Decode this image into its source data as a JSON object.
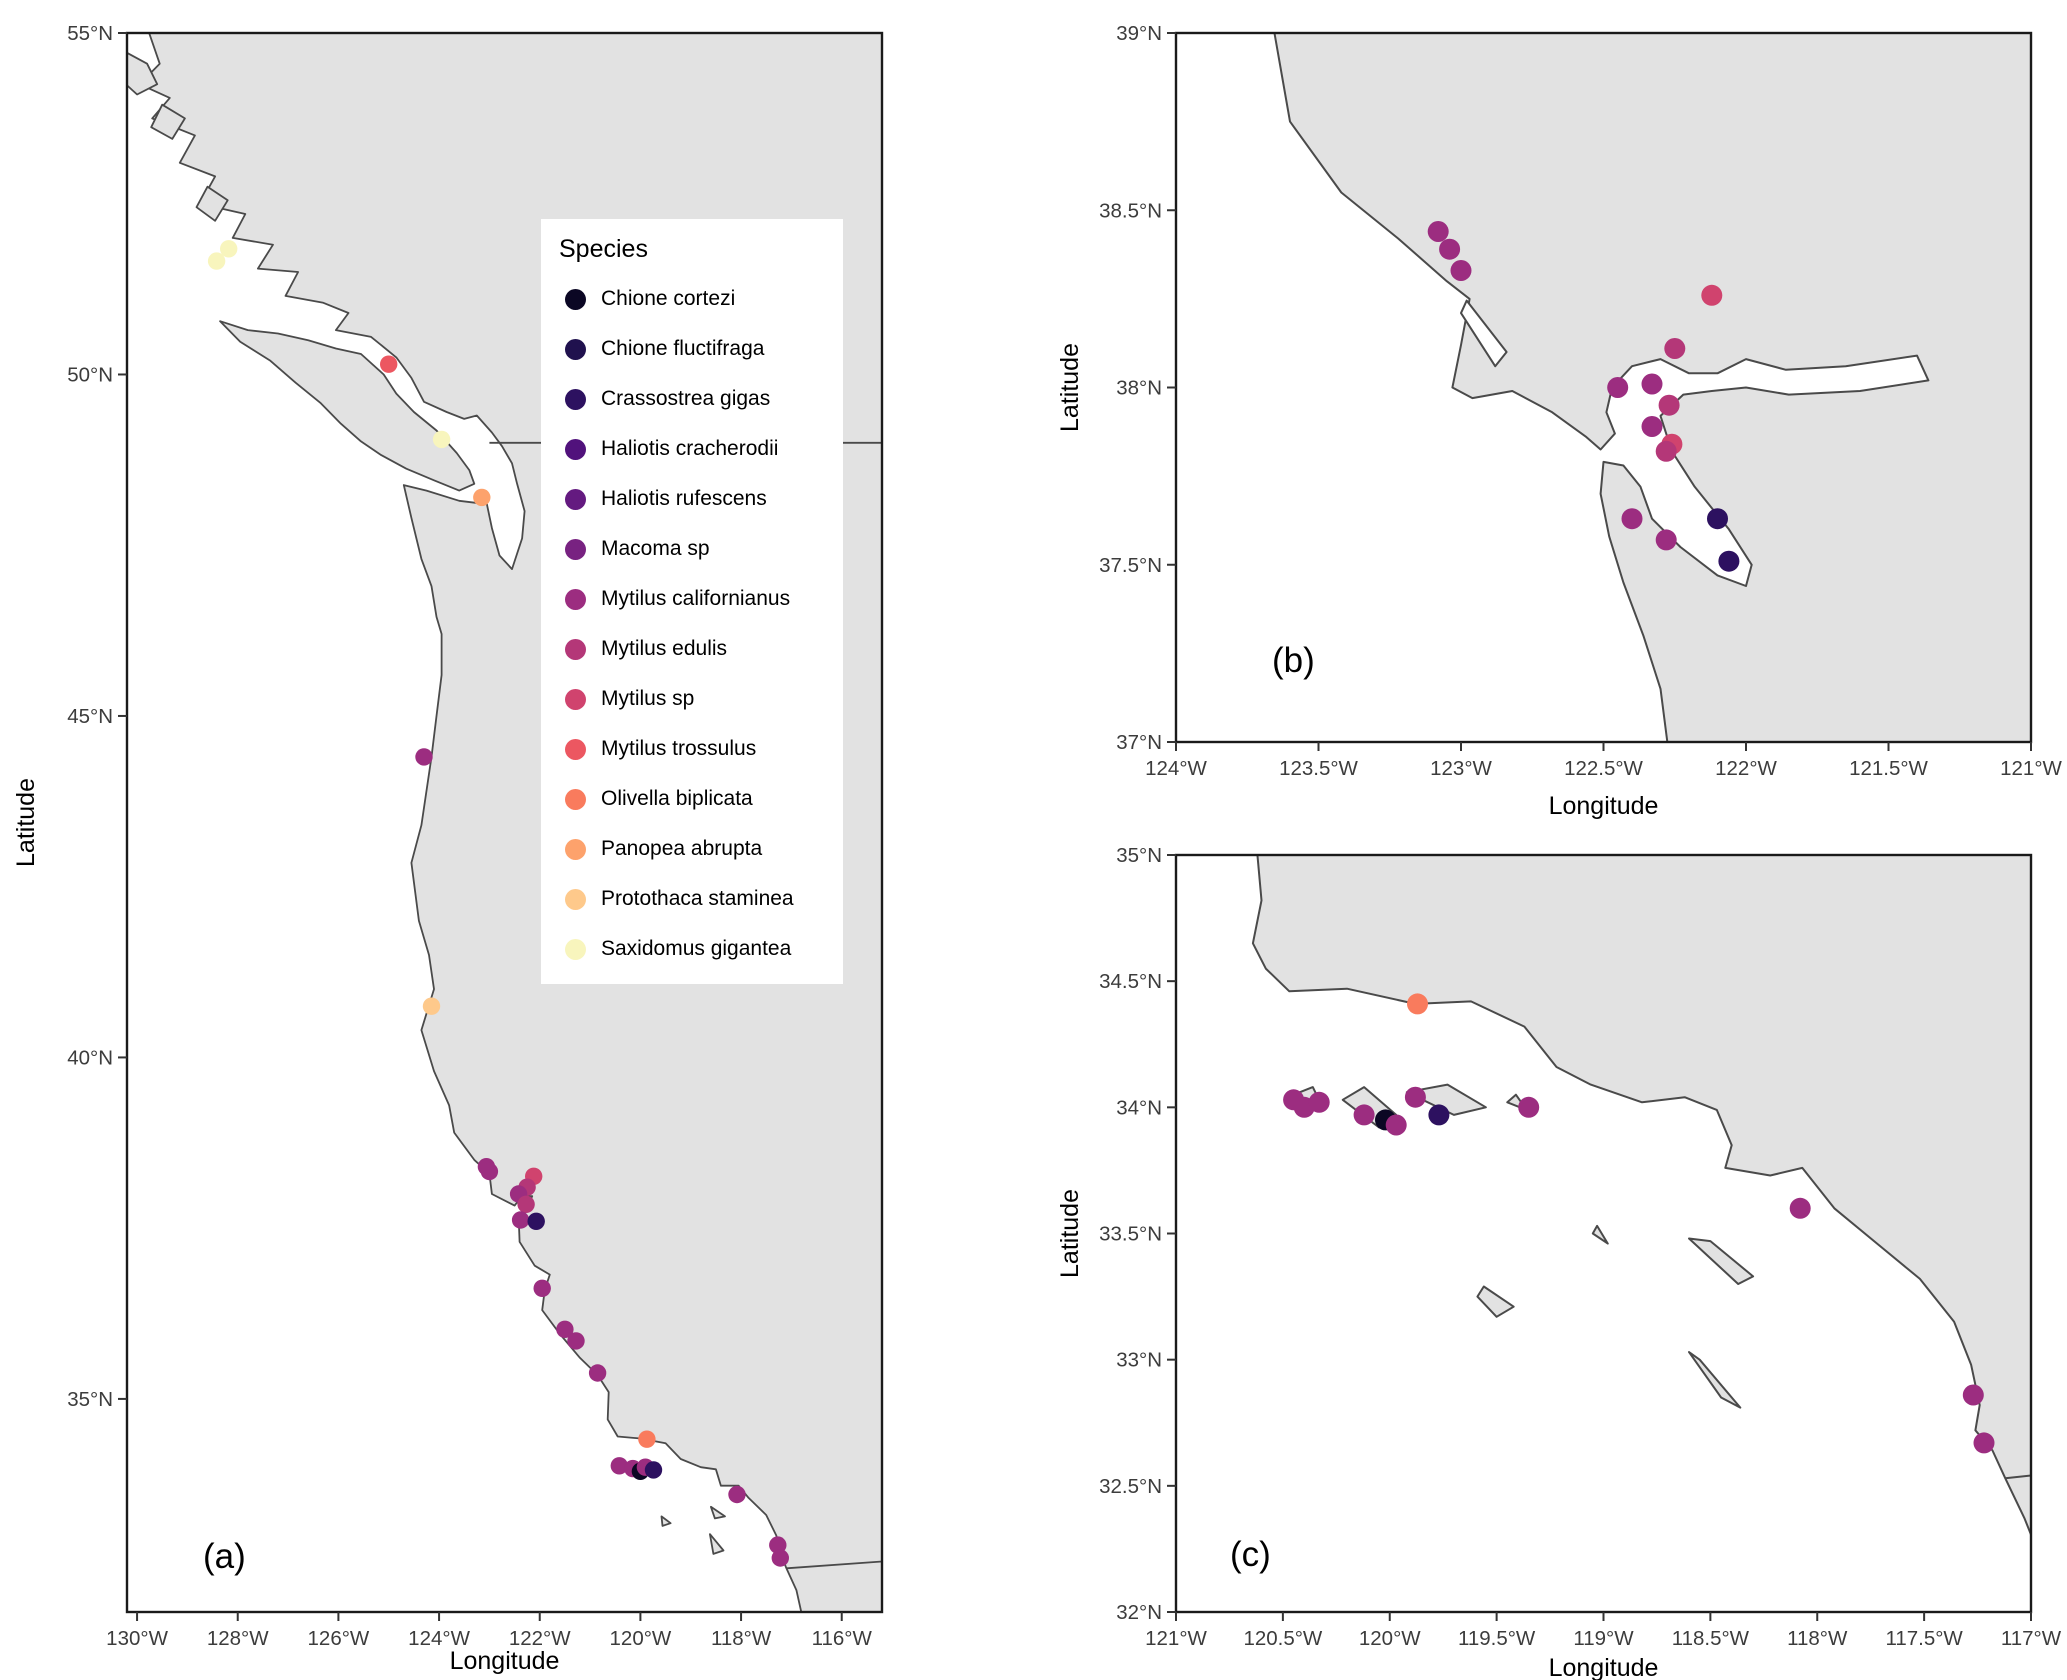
{
  "chart_data": {
    "type": "scatter",
    "title": "",
    "style": {
      "ocean_color": "#ffffff",
      "land_color": "#e2e2e2",
      "coast_color": "#4a4a4a",
      "panel_border_color": "#1a1a1a",
      "tick_color": "#333333",
      "tick_label_color": "#3c3c3c",
      "axis_title_color": "#000000"
    },
    "legend": {
      "title": "Species",
      "position": "inside-panel-a",
      "items": [
        {
          "label": "Chione cortezi",
          "color": "#0b0724"
        },
        {
          "label": "Chione fluctifraga",
          "color": "#20114e"
        },
        {
          "label": "Crassostrea gigas",
          "color": "#2d1160"
        },
        {
          "label": "Haliotis cracherodii",
          "color": "#51127c"
        },
        {
          "label": "Haliotis rufescens",
          "color": "#641a80"
        },
        {
          "label": "Macoma sp",
          "color": "#782281"
        },
        {
          "label": "Mytilus californianus",
          "color": "#9c2d80"
        },
        {
          "label": "Mytilus edulis",
          "color": "#b43778"
        },
        {
          "label": "Mytilus sp",
          "color": "#d0436e"
        },
        {
          "label": "Mytilus trossulus",
          "color": "#ec5761"
        },
        {
          "label": "Olivella biplicata",
          "color": "#f97b5d"
        },
        {
          "label": "Panopea abrupta",
          "color": "#fda26c"
        },
        {
          "label": "Protothaca staminea",
          "color": "#fec98b"
        },
        {
          "label": "Saxidomus gigantea",
          "color": "#f8f5bd"
        }
      ]
    },
    "panels": [
      {
        "id": "a",
        "label": "(a)",
        "xlabel": "Longitude",
        "ylabel": "Latitude",
        "xlim": [
          -130.2,
          -115.2
        ],
        "ylim": [
          31.88,
          55.0
        ],
        "x_ticks": [
          {
            "v": -130,
            "label": "130°W"
          },
          {
            "v": -128,
            "label": "128°W"
          },
          {
            "v": -126,
            "label": "126°W"
          },
          {
            "v": -124,
            "label": "124°W"
          },
          {
            "v": -122,
            "label": "122°W"
          },
          {
            "v": -120,
            "label": "120°W"
          },
          {
            "v": -118,
            "label": "118°W"
          },
          {
            "v": -116,
            "label": "116°W"
          }
        ],
        "y_ticks": [
          {
            "v": 35,
            "label": "35°N"
          },
          {
            "v": 40,
            "label": "40°N"
          },
          {
            "v": 45,
            "label": "45°N"
          },
          {
            "v": 50,
            "label": "50°N"
          },
          {
            "v": 55,
            "label": "55°N"
          }
        ],
        "points": [
          {
            "species": "Saxidomus gigantea",
            "lon": -128.42,
            "lat": 51.66
          },
          {
            "species": "Saxidomus gigantea",
            "lon": -128.18,
            "lat": 51.84
          },
          {
            "species": "Mytilus trossulus",
            "lon": -125.0,
            "lat": 50.15
          },
          {
            "species": "Saxidomus gigantea",
            "lon": -123.95,
            "lat": 49.05
          },
          {
            "species": "Panopea abrupta",
            "lon": -123.15,
            "lat": 48.2
          },
          {
            "species": "Mytilus californianus",
            "lon": -124.3,
            "lat": 44.4
          },
          {
            "species": "Protothaca staminea",
            "lon": -124.15,
            "lat": 40.75
          },
          {
            "species": "Mytilus californianus",
            "lon": -123.06,
            "lat": 38.4
          },
          {
            "species": "Mytilus californianus",
            "lon": -123.0,
            "lat": 38.33
          },
          {
            "species": "Mytilus sp",
            "lon": -122.12,
            "lat": 38.26
          },
          {
            "species": "Mytilus edulis",
            "lon": -122.25,
            "lat": 38.1
          },
          {
            "species": "Mytilus californianus",
            "lon": -122.42,
            "lat": 38.0
          },
          {
            "species": "Mytilus edulis",
            "lon": -122.27,
            "lat": 37.85
          },
          {
            "species": "Mytilus californianus",
            "lon": -122.38,
            "lat": 37.62
          },
          {
            "species": "Crassostrea gigas",
            "lon": -122.07,
            "lat": 37.6
          },
          {
            "species": "Mytilus californianus",
            "lon": -121.95,
            "lat": 36.62
          },
          {
            "species": "Mytilus californianus",
            "lon": -121.5,
            "lat": 36.02
          },
          {
            "species": "Mytilus californianus",
            "lon": -121.28,
            "lat": 35.85
          },
          {
            "species": "Mytilus californianus",
            "lon": -120.85,
            "lat": 35.38
          },
          {
            "species": "Olivella biplicata",
            "lon": -119.87,
            "lat": 34.41
          },
          {
            "species": "Mytilus californianus",
            "lon": -120.42,
            "lat": 34.02
          },
          {
            "species": "Mytilus californianus",
            "lon": -120.15,
            "lat": 33.98
          },
          {
            "species": "Chione cortezi",
            "lon": -120.0,
            "lat": 33.94
          },
          {
            "species": "Mytilus californianus",
            "lon": -119.9,
            "lat": 34.0
          },
          {
            "species": "Crassostrea gigas",
            "lon": -119.74,
            "lat": 33.96
          },
          {
            "species": "Mytilus californianus",
            "lon": -118.08,
            "lat": 33.6
          },
          {
            "species": "Mytilus californianus",
            "lon": -117.27,
            "lat": 32.86
          },
          {
            "species": "Mytilus californianus",
            "lon": -117.22,
            "lat": 32.67
          }
        ]
      },
      {
        "id": "b",
        "label": "(b)",
        "xlabel": "Longitude",
        "ylabel": "Latitude",
        "xlim": [
          -124.0,
          -121.0
        ],
        "ylim": [
          37.0,
          39.0
        ],
        "x_ticks": [
          {
            "v": -124,
            "label": "124°W"
          },
          {
            "v": -123.5,
            "label": "123.5°W"
          },
          {
            "v": -123,
            "label": "123°W"
          },
          {
            "v": -122.5,
            "label": "122.5°W"
          },
          {
            "v": -122,
            "label": "122°W"
          },
          {
            "v": -121.5,
            "label": "121.5°W"
          },
          {
            "v": -121,
            "label": "121°W"
          }
        ],
        "y_ticks": [
          {
            "v": 37,
            "label": "37°N"
          },
          {
            "v": 37.5,
            "label": "37.5°N"
          },
          {
            "v": 38,
            "label": "38°N"
          },
          {
            "v": 38.5,
            "label": "38.5°N"
          },
          {
            "v": 39,
            "label": "39°N"
          }
        ],
        "points": [
          {
            "species": "Mytilus californianus",
            "lon": -123.08,
            "lat": 38.44
          },
          {
            "species": "Mytilus californianus",
            "lon": -123.04,
            "lat": 38.39
          },
          {
            "species": "Mytilus californianus",
            "lon": -123.0,
            "lat": 38.33
          },
          {
            "species": "Mytilus sp",
            "lon": -122.12,
            "lat": 38.26
          },
          {
            "species": "Mytilus edulis",
            "lon": -122.25,
            "lat": 38.11
          },
          {
            "species": "Mytilus californianus",
            "lon": -122.45,
            "lat": 38.0
          },
          {
            "species": "Mytilus californianus",
            "lon": -122.33,
            "lat": 38.01
          },
          {
            "species": "Mytilus edulis",
            "lon": -122.27,
            "lat": 37.95
          },
          {
            "species": "Mytilus californianus",
            "lon": -122.33,
            "lat": 37.89
          },
          {
            "species": "Mytilus sp",
            "lon": -122.26,
            "lat": 37.84
          },
          {
            "species": "Mytilus edulis",
            "lon": -122.28,
            "lat": 37.82
          },
          {
            "species": "Mytilus californianus",
            "lon": -122.4,
            "lat": 37.63
          },
          {
            "species": "Mytilus californianus",
            "lon": -122.28,
            "lat": 37.57
          },
          {
            "species": "Crassostrea gigas",
            "lon": -122.1,
            "lat": 37.63
          },
          {
            "species": "Crassostrea gigas",
            "lon": -122.06,
            "lat": 37.51
          }
        ]
      },
      {
        "id": "c",
        "label": "(c)",
        "xlabel": "Longitude",
        "ylabel": "Latitude",
        "xlim": [
          -121.0,
          -117.0
        ],
        "ylim": [
          32.0,
          35.0
        ],
        "x_ticks": [
          {
            "v": -121,
            "label": "121°W"
          },
          {
            "v": -120.5,
            "label": "120.5°W"
          },
          {
            "v": -120,
            "label": "120°W"
          },
          {
            "v": -119.5,
            "label": "119.5°W"
          },
          {
            "v": -119,
            "label": "119°W"
          },
          {
            "v": -118.5,
            "label": "118.5°W"
          },
          {
            "v": -118,
            "label": "118°W"
          },
          {
            "v": -117.5,
            "label": "117.5°W"
          },
          {
            "v": -117,
            "label": "117°W"
          }
        ],
        "y_ticks": [
          {
            "v": 32,
            "label": "32°N"
          },
          {
            "v": 32.5,
            "label": "32.5°N"
          },
          {
            "v": 33,
            "label": "33°N"
          },
          {
            "v": 33.5,
            "label": "33.5°N"
          },
          {
            "v": 34,
            "label": "34°N"
          },
          {
            "v": 34.5,
            "label": "34.5°N"
          },
          {
            "v": 35,
            "label": "35°N"
          }
        ],
        "points": [
          {
            "species": "Olivella biplicata",
            "lon": -119.87,
            "lat": 34.41
          },
          {
            "species": "Mytilus californianus",
            "lon": -120.45,
            "lat": 34.03
          },
          {
            "species": "Mytilus californianus",
            "lon": -120.4,
            "lat": 34.0
          },
          {
            "species": "Mytilus californianus",
            "lon": -120.33,
            "lat": 34.02
          },
          {
            "species": "Mytilus californianus",
            "lon": -120.12,
            "lat": 33.97
          },
          {
            "species": "Chione cortezi",
            "lon": -120.02,
            "lat": 33.95
          },
          {
            "species": "Mytilus californianus",
            "lon": -119.97,
            "lat": 33.93
          },
          {
            "species": "Mytilus californianus",
            "lon": -119.88,
            "lat": 34.04
          },
          {
            "species": "Crassostrea gigas",
            "lon": -119.77,
            "lat": 33.97
          },
          {
            "species": "Mytilus californianus",
            "lon": -119.35,
            "lat": 34.0
          },
          {
            "species": "Mytilus californianus",
            "lon": -118.08,
            "lat": 33.6
          },
          {
            "species": "Mytilus californianus",
            "lon": -117.27,
            "lat": 32.86
          },
          {
            "species": "Mytilus californianus",
            "lon": -117.22,
            "lat": 32.67
          }
        ]
      }
    ]
  }
}
